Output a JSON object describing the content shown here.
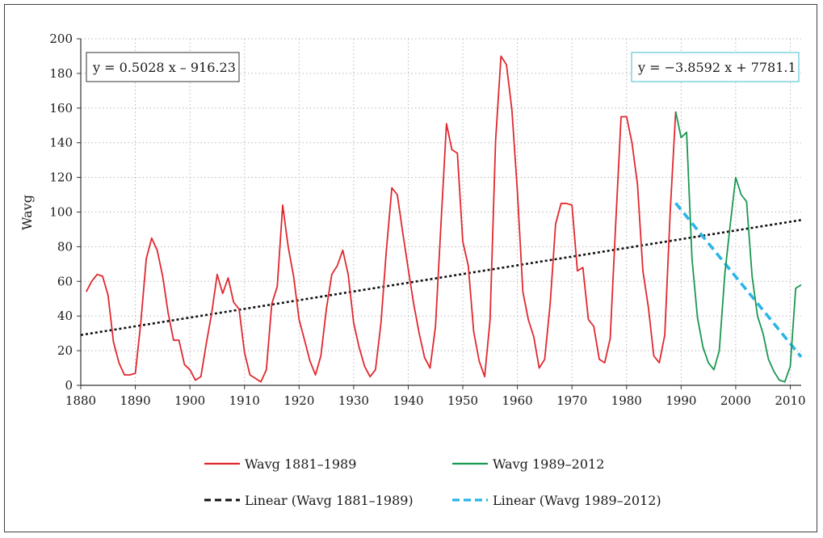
{
  "chart_data": {
    "type": "line",
    "ylabel": "Wavg",
    "xlabel": "",
    "xlim": [
      1880,
      2012
    ],
    "ylim": [
      0,
      200
    ],
    "x_ticks": [
      1880,
      1890,
      1900,
      1910,
      1920,
      1930,
      1940,
      1950,
      1960,
      1970,
      1980,
      1990,
      2000,
      2010
    ],
    "y_ticks": [
      0,
      20,
      40,
      60,
      80,
      100,
      120,
      140,
      160,
      180,
      200
    ],
    "grid": "dotted",
    "colors": {
      "series1": "#e0282e",
      "series2": "#1a9850",
      "trend1": "#111111",
      "trend2": "#2ab4e8",
      "eq1_border": "#555555",
      "eq2_border": "#5fc7d6"
    },
    "equations": [
      "y = 0.5028 x – 916.23",
      "y = −3.8592 x + 7781.1"
    ],
    "legend": {
      "series1": "Wavg 1881–1989",
      "series2": "Wavg 1989–2012",
      "trend1": "Linear (Wavg 1881–1989)",
      "trend2": "Linear (Wavg 1989–2012)"
    },
    "series": [
      {
        "name": "Wavg 1881–1989",
        "x": [
          1881,
          1882,
          1883,
          1884,
          1885,
          1886,
          1887,
          1888,
          1889,
          1890,
          1891,
          1892,
          1893,
          1894,
          1895,
          1896,
          1897,
          1898,
          1899,
          1900,
          1901,
          1902,
          1903,
          1904,
          1905,
          1906,
          1907,
          1908,
          1909,
          1910,
          1911,
          1912,
          1913,
          1914,
          1915,
          1916,
          1917,
          1918,
          1919,
          1920,
          1921,
          1922,
          1923,
          1924,
          1925,
          1926,
          1927,
          1928,
          1929,
          1930,
          1931,
          1932,
          1933,
          1934,
          1935,
          1936,
          1937,
          1938,
          1939,
          1940,
          1941,
          1942,
          1943,
          1944,
          1945,
          1946,
          1947,
          1948,
          1949,
          1950,
          1951,
          1952,
          1953,
          1954,
          1955,
          1956,
          1957,
          1958,
          1959,
          1960,
          1961,
          1962,
          1963,
          1964,
          1965,
          1966,
          1967,
          1968,
          1969,
          1970,
          1971,
          1972,
          1973,
          1974,
          1975,
          1976,
          1977,
          1978,
          1979,
          1980,
          1981,
          1982,
          1983,
          1984,
          1985,
          1986,
          1987,
          1988,
          1989
        ],
        "values": [
          54,
          60,
          64,
          63,
          52,
          25,
          13,
          6,
          6,
          7,
          36,
          73,
          85,
          78,
          63,
          42,
          26,
          26,
          12,
          9,
          3,
          5,
          24,
          42,
          64,
          53,
          62,
          48,
          44,
          19,
          6,
          4,
          2,
          9,
          47,
          57,
          104,
          80,
          63,
          38,
          26,
          14,
          6,
          17,
          44,
          64,
          69,
          78,
          64,
          36,
          22,
          11,
          5,
          9,
          36,
          78,
          114,
          110,
          88,
          67,
          47,
          30,
          16,
          10,
          34,
          93,
          151,
          136,
          134,
          83,
          69,
          31,
          14,
          5,
          38,
          141,
          190,
          185,
          159,
          112,
          54,
          38,
          28,
          10,
          15,
          47,
          93,
          105,
          105,
          104,
          66,
          68,
          38,
          34,
          15,
          13,
          27,
          92,
          155,
          155,
          140,
          116,
          66,
          45,
          17,
          13,
          29,
          100,
          158
        ]
      },
      {
        "name": "Wavg 1989–2012",
        "x": [
          1989,
          1990,
          1991,
          1992,
          1993,
          1994,
          1995,
          1996,
          1997,
          1998,
          1999,
          2000,
          2001,
          2002,
          2003,
          2004,
          2005,
          2006,
          2007,
          2008,
          2009,
          2010,
          2011,
          2012
        ],
        "values": [
          158,
          143,
          146,
          73,
          39,
          22,
          13,
          9,
          20,
          64,
          93,
          120,
          110,
          106,
          63,
          40,
          30,
          15,
          8,
          3,
          2,
          11,
          56,
          58
        ]
      }
    ],
    "trendlines": [
      {
        "name": "Linear (Wavg 1881–1989)",
        "slope": 0.5028,
        "intercept": -916.23,
        "x_range": [
          1880,
          2012
        ]
      },
      {
        "name": "Linear (Wavg 1989–2012)",
        "slope": -3.8592,
        "intercept": 7781.1,
        "x_range": [
          1989,
          2012
        ]
      }
    ]
  }
}
